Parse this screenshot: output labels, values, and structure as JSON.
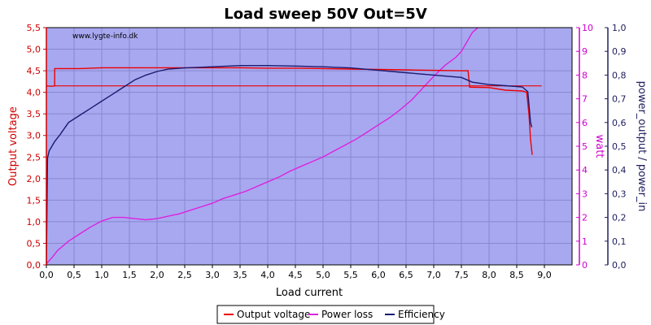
{
  "chart_data": {
    "type": "line",
    "title": "Load sweep 50V Out=5V",
    "watermark": "www.lygte-info.dk",
    "xlabel": "Load current",
    "ylabel_left": "Output voltage",
    "ylabel_right1": "watt",
    "ylabel_right2": "power_output / power_in",
    "xlim": [
      0,
      9.5
    ],
    "ylim_left": [
      0,
      5.5
    ],
    "ylim_right1": [
      0,
      10
    ],
    "ylim_right2": [
      0,
      1.0
    ],
    "x_ticks": [
      "0,0",
      "0,5",
      "1,0",
      "1,5",
      "2,0",
      "2,5",
      "3,0",
      "3,5",
      "4,0",
      "4,5",
      "5,0",
      "5,5",
      "6,0",
      "6,5",
      "7,0",
      "7,5",
      "8,0",
      "8,5",
      "9,0"
    ],
    "y_left_ticks": [
      "0,0",
      "0,5",
      "1,0",
      "1,5",
      "2,0",
      "2,5",
      "3,0",
      "3,5",
      "4,0",
      "4,5",
      "5,0",
      "5,5"
    ],
    "y_right1_ticks": [
      "0",
      "1",
      "2",
      "3",
      "4",
      "5",
      "6",
      "7",
      "8",
      "9",
      "10"
    ],
    "y_right2_ticks": [
      "0,0",
      "0,1",
      "0,2",
      "0,3",
      "0,4",
      "0,5",
      "0,6",
      "0,7",
      "0,8",
      "0,9",
      "1,0"
    ],
    "grid": true,
    "legend_position": "bottom-center",
    "colors": {
      "plot_bg": "#a8a8f0",
      "grid": "#8888d0",
      "left_axis": "#cc0000",
      "right1_axis": "#cc00cc",
      "right2_axis": "#202060"
    },
    "series": [
      {
        "name": "Output voltage",
        "axis": "left",
        "color": "#ee0000",
        "points": [
          [
            0.0,
            4.15
          ],
          [
            0.1,
            4.14
          ],
          [
            0.15,
            4.15
          ],
          [
            0.15,
            4.55
          ],
          [
            0.3,
            4.55
          ],
          [
            0.6,
            4.55
          ],
          [
            1.0,
            4.57
          ],
          [
            1.5,
            4.57
          ],
          [
            2.0,
            4.57
          ],
          [
            2.5,
            4.57
          ],
          [
            3.0,
            4.57
          ],
          [
            3.5,
            4.57
          ],
          [
            4.0,
            4.56
          ],
          [
            4.5,
            4.56
          ],
          [
            5.0,
            4.55
          ],
          [
            5.5,
            4.54
          ],
          [
            6.0,
            4.53
          ],
          [
            6.5,
            4.52
          ],
          [
            7.0,
            4.51
          ],
          [
            7.5,
            4.5
          ],
          [
            7.62,
            4.5
          ],
          [
            7.65,
            4.12
          ],
          [
            8.0,
            4.11
          ],
          [
            8.3,
            4.05
          ],
          [
            8.6,
            4.03
          ],
          [
            8.68,
            4.0
          ],
          [
            8.72,
            3.5
          ],
          [
            8.75,
            2.9
          ],
          [
            8.78,
            2.55
          ]
        ],
        "return_line": [
          [
            0.15,
            4.15
          ],
          [
            8.95,
            4.15
          ]
        ]
      },
      {
        "name": "Power loss",
        "axis": "right1",
        "color": "#dd22dd",
        "points": [
          [
            0.0,
            0.05
          ],
          [
            0.1,
            0.3
          ],
          [
            0.2,
            0.6
          ],
          [
            0.4,
            1.0
          ],
          [
            0.6,
            1.3
          ],
          [
            0.8,
            1.6
          ],
          [
            1.0,
            1.85
          ],
          [
            1.2,
            2.0
          ],
          [
            1.4,
            2.0
          ],
          [
            1.6,
            1.95
          ],
          [
            1.8,
            1.9
          ],
          [
            2.0,
            1.95
          ],
          [
            2.2,
            2.05
          ],
          [
            2.4,
            2.15
          ],
          [
            2.6,
            2.3
          ],
          [
            2.8,
            2.45
          ],
          [
            3.0,
            2.6
          ],
          [
            3.2,
            2.8
          ],
          [
            3.4,
            2.95
          ],
          [
            3.6,
            3.1
          ],
          [
            3.8,
            3.3
          ],
          [
            4.0,
            3.5
          ],
          [
            4.2,
            3.7
          ],
          [
            4.4,
            3.95
          ],
          [
            4.6,
            4.15
          ],
          [
            4.8,
            4.35
          ],
          [
            5.0,
            4.55
          ],
          [
            5.2,
            4.8
          ],
          [
            5.4,
            5.05
          ],
          [
            5.6,
            5.3
          ],
          [
            5.8,
            5.6
          ],
          [
            6.0,
            5.9
          ],
          [
            6.2,
            6.2
          ],
          [
            6.4,
            6.55
          ],
          [
            6.6,
            6.95
          ],
          [
            6.8,
            7.45
          ],
          [
            7.0,
            7.95
          ],
          [
            7.2,
            8.4
          ],
          [
            7.4,
            8.75
          ],
          [
            7.5,
            9.0
          ],
          [
            7.6,
            9.4
          ],
          [
            7.7,
            9.8
          ],
          [
            7.8,
            10.0
          ]
        ]
      },
      {
        "name": "Efficiency",
        "axis": "right2",
        "color": "#1a1a70",
        "points": [
          [
            0.0,
            0.0
          ],
          [
            0.02,
            0.45
          ],
          [
            0.05,
            0.48
          ],
          [
            0.1,
            0.5
          ],
          [
            0.15,
            0.52
          ],
          [
            0.25,
            0.55
          ],
          [
            0.4,
            0.6
          ],
          [
            0.6,
            0.63
          ],
          [
            0.8,
            0.66
          ],
          [
            1.0,
            0.69
          ],
          [
            1.2,
            0.72
          ],
          [
            1.4,
            0.75
          ],
          [
            1.6,
            0.78
          ],
          [
            1.8,
            0.8
          ],
          [
            2.0,
            0.815
          ],
          [
            2.2,
            0.825
          ],
          [
            2.5,
            0.83
          ],
          [
            3.0,
            0.835
          ],
          [
            3.5,
            0.84
          ],
          [
            4.0,
            0.84
          ],
          [
            4.5,
            0.838
          ],
          [
            5.0,
            0.835
          ],
          [
            5.5,
            0.83
          ],
          [
            6.0,
            0.82
          ],
          [
            6.5,
            0.81
          ],
          [
            7.0,
            0.8
          ],
          [
            7.5,
            0.79
          ],
          [
            7.7,
            0.77
          ],
          [
            8.0,
            0.76
          ],
          [
            8.3,
            0.755
          ],
          [
            8.6,
            0.75
          ],
          [
            8.7,
            0.73
          ],
          [
            8.75,
            0.6
          ],
          [
            8.77,
            0.58
          ]
        ]
      }
    ]
  }
}
